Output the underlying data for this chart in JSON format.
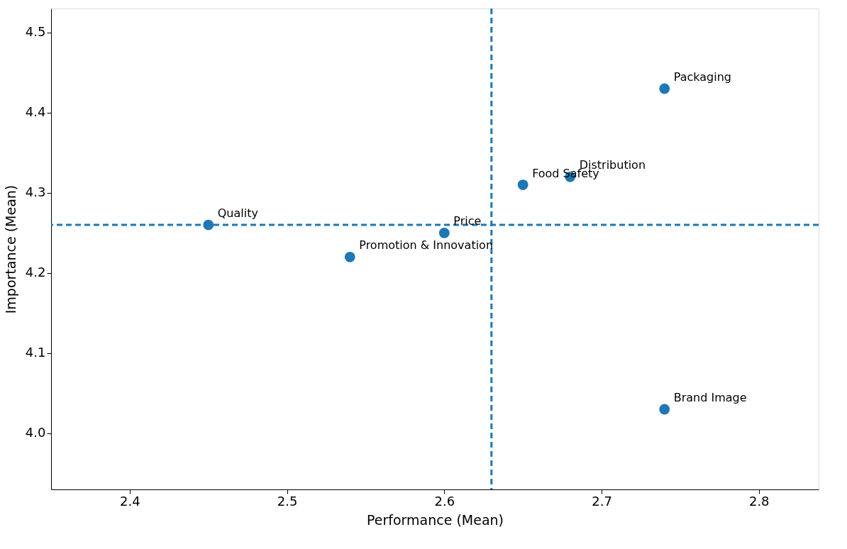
{
  "chart_data": {
    "type": "scatter",
    "xlabel": "Performance (Mean)",
    "ylabel": "Importance (Mean)",
    "x": [
      2.45,
      2.54,
      2.6,
      2.65,
      2.68,
      2.74,
      2.74
    ],
    "series": [
      {
        "color": "#1f77b4",
        "values": [
          4.26,
          4.22,
          4.25,
          4.31,
          4.32,
          4.43,
          4.03
        ]
      }
    ],
    "marker": "circle",
    "grid": false,
    "xlim": [
      2.35,
      2.838
    ],
    "ylim": [
      3.93,
      4.53
    ],
    "xticks": [
      2.4,
      2.5,
      2.6,
      2.7,
      2.8
    ],
    "yticks": [
      {
        "value": 4.0,
        "label": "4.0"
      },
      4.1,
      4.2,
      4.3,
      4.4,
      4.5
    ],
    "ref_lines": [
      {
        "axis": "x",
        "value": 2.63,
        "color": "#1f77b4",
        "line_style": "dashed"
      },
      {
        "axis": "y",
        "value": 4.26,
        "color": "#1f77b4",
        "line_style": "dashed"
      }
    ],
    "annotations": [
      {
        "text": "Quality",
        "x": 2.45,
        "y": 4.26
      },
      {
        "text": "Promotion & Innovation",
        "x": 2.54,
        "y": 4.22
      },
      {
        "text": "Price",
        "x": 2.6,
        "y": 4.25
      },
      {
        "text": "Food Safety",
        "x": 2.65,
        "y": 4.31
      },
      {
        "text": "Distribution",
        "x": 2.68,
        "y": 4.32
      },
      {
        "text": "Packaging",
        "x": 2.74,
        "y": 4.43
      },
      {
        "text": "Brand Image",
        "x": 2.74,
        "y": 4.03
      }
    ]
  }
}
